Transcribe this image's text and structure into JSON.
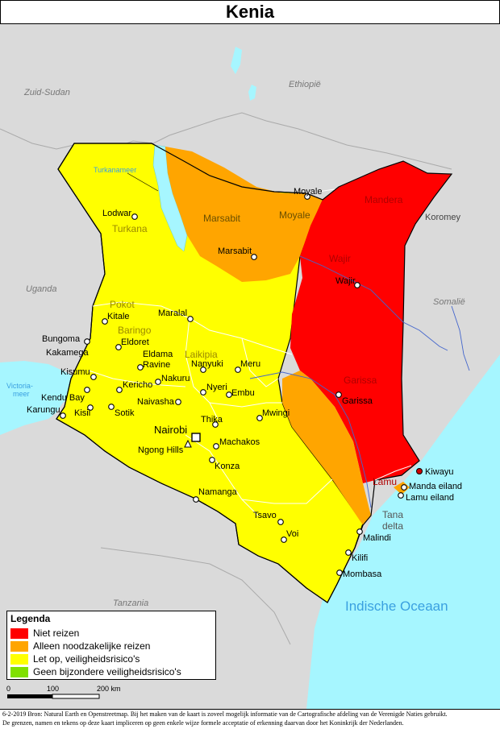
{
  "title": "Kenia",
  "colors": {
    "niet_reizen": "#ff0000",
    "noodzakelijk": "#ffa500",
    "let_op": "#ffff00",
    "geen": "#80e000",
    "water": "#a6f6ff",
    "neighbor": "#dadada"
  },
  "neighbors": {
    "zuid_sudan": "Zuid-Sudan",
    "ethiopie": "Ethiopië",
    "somalie": "Somalië",
    "uganda": "Uganda",
    "tanzania": "Tanzania"
  },
  "water_labels": {
    "turkana_meer": "Turkanameer",
    "victoria_l1": "Victoria-",
    "victoria_l2": "meer",
    "ocean": "Indische Oceaan"
  },
  "regions": {
    "turkana": "Turkana",
    "marsabit": "Marsabit",
    "moyale": "Moyale",
    "mandera": "Mandera",
    "wajir": "Wajir",
    "garissa": "Garissa",
    "lamu": "Lamu",
    "pokot": "Pokot",
    "baringo": "Baringo",
    "laikipia": "Laikipia",
    "tana_l1": "Tana",
    "tana_l2": "delta"
  },
  "cities": {
    "lodwar": "Lodwar",
    "marsabit": "Marsabit",
    "moyale": "Moyale",
    "koromey": "Koromey",
    "wajir": "Wajir",
    "garissa": "Garissa",
    "kitale": "Kitale",
    "maralal": "Maralal",
    "bungoma": "Bungoma",
    "kakamega": "Kakamega",
    "eldoret": "Eldoret",
    "eldama_ravine_1": "Eldama",
    "eldama_ravine_2": "Ravine",
    "nanyuki": "Nanyuki",
    "meru": "Meru",
    "kisumu": "Kisumu",
    "kericho": "Kericho",
    "nakuru": "Nakuru",
    "nyeri": "Nyeri",
    "embu": "Embu",
    "kendu_bay": "Kendu Bay",
    "karungu": "Karungu",
    "kisii": "Kisii",
    "sotik": "Sotik",
    "naivasha": "Naivasha",
    "thika": "Thika",
    "mwingi": "Mwingi",
    "nairobi": "Nairobi",
    "ngong_hills": "Ngong Hills",
    "machakos": "Machakos",
    "konza": "Konza",
    "namanga": "Namanga",
    "tsavo": "Tsavo",
    "voi": "Voi",
    "malindi": "Malindi",
    "kilifi": "Kilifi",
    "mombasa": "Mombasa",
    "kiwayu": "Kiwayu",
    "manda_eiland": "Manda eiland",
    "lamu_eiland": "Lamu eiland"
  },
  "legend": {
    "title": "Legenda",
    "items": [
      {
        "label": "Niet reizen",
        "color": "#ff0000"
      },
      {
        "label": "Alleen noodzakelijke reizen",
        "color": "#ffa500"
      },
      {
        "label": "Let op, veiligheidsrisico's",
        "color": "#ffff00"
      },
      {
        "label": "Geen bijzondere veiligheidsrisico's",
        "color": "#80e000"
      }
    ]
  },
  "scale": {
    "t0": "0",
    "t1": "100",
    "t2": "200 km"
  },
  "footer": {
    "line1": "6-2-2019 Bron: Natural Earth en Openstreetmap. Bij het maken van de kaart is zoveel mogelijk informatie van de Cartografische afdeling van de Verenigde Naties gebruikt.",
    "line2": "De grenzen, namen en tekens op deze kaart impliceren op geen enkele wijze formele acceptatie of erkenning daarvan door het Koninkrijk der Nederlanden."
  }
}
